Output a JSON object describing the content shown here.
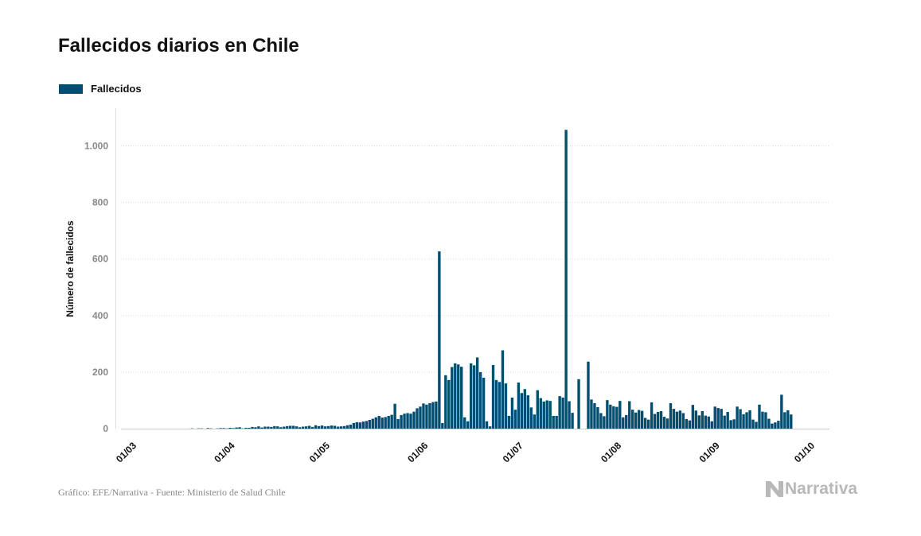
{
  "chart_data": {
    "type": "bar",
    "title": "Fallecidos diarios en Chile",
    "ylabel": "Número de fallecidos",
    "xlabel": "",
    "legend": {
      "placement": "top-left",
      "entries": [
        "Fallecidos"
      ]
    },
    "grid": true,
    "ylim": [
      0,
      1100
    ],
    "yticks": [
      0,
      200,
      400,
      600,
      800,
      1000
    ],
    "ytick_labels": [
      "0",
      "200",
      "400",
      "600",
      "800",
      "1.000"
    ],
    "xticks": [
      {
        "date": "2020-03-01",
        "label": "01/03"
      },
      {
        "date": "2020-04-01",
        "label": "01/04"
      },
      {
        "date": "2020-05-01",
        "label": "01/05"
      },
      {
        "date": "2020-06-01",
        "label": "01/06"
      },
      {
        "date": "2020-07-01",
        "label": "01/07"
      },
      {
        "date": "2020-08-01",
        "label": "01/08"
      },
      {
        "date": "2020-09-01",
        "label": "01/09"
      },
      {
        "date": "2020-10-01",
        "label": "01/10"
      }
    ],
    "xlim": [
      "2020-03-01",
      "2020-10-01"
    ],
    "series": [
      {
        "name": "Fallecidos",
        "color": "#004f73",
        "start_date": "2020-03-21",
        "values": [
          1,
          0,
          1,
          1,
          0,
          2,
          1,
          0,
          1,
          2,
          2,
          1,
          3,
          2,
          4,
          5,
          1,
          3,
          3,
          6,
          5,
          8,
          4,
          7,
          7,
          6,
          9,
          8,
          5,
          7,
          9,
          10,
          10,
          8,
          5,
          7,
          8,
          10,
          6,
          12,
          9,
          11,
          8,
          9,
          11,
          10,
          7,
          8,
          9,
          12,
          14,
          20,
          23,
          22,
          25,
          27,
          31,
          35,
          40,
          45,
          39,
          41,
          45,
          49,
          88,
          34,
          48,
          53,
          55,
          53,
          60,
          72,
          78,
          89,
          85,
          90,
          94,
          96,
          627,
          20,
          189,
          172,
          218,
          231,
          227,
          219,
          40,
          26,
          231,
          224,
          252,
          200,
          180,
          26,
          8,
          225,
          172,
          165,
          277,
          160,
          45,
          110,
          67,
          163,
          126,
          140,
          118,
          75,
          50,
          136,
          108,
          96,
          100,
          98,
          45,
          45,
          115,
          110,
          1057,
          97,
          56,
          0,
          175,
          0,
          0,
          237,
          103,
          90,
          76,
          55,
          44,
          101,
          85,
          79,
          77,
          98,
          40,
          48,
          97,
          67,
          57,
          66,
          63,
          38,
          32,
          93,
          52,
          59,
          62,
          42,
          36,
          90,
          70,
          60,
          64,
          55,
          34,
          29,
          84,
          64,
          47,
          62,
          46,
          43,
          26,
          78,
          73,
          70,
          46,
          59,
          30,
          33,
          78,
          69,
          51,
          58,
          65,
          32,
          24,
          85,
          60,
          58,
          35,
          18,
          22,
          28,
          120,
          58,
          65,
          50
        ]
      }
    ]
  },
  "footer": {
    "source": "Gráfico: EFE/Narrativa - Fuente: Ministerio de Salud Chile",
    "brand": "Narrativa",
    "brand_icon": "n-logo-icon"
  }
}
